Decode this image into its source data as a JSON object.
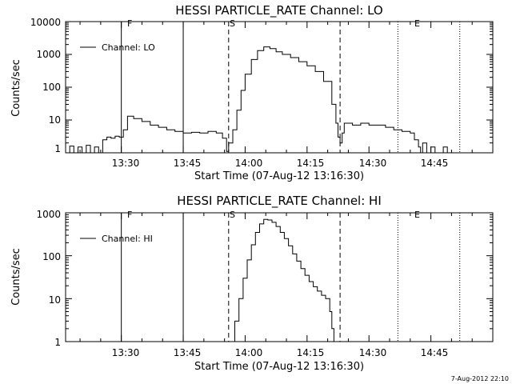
{
  "footer": {
    "timestamp": "7-Aug-2012 22:10"
  },
  "chart_data": [
    {
      "type": "line",
      "title": "HESSI PARTICLE_RATE Channel: LO",
      "xlabel": "Start Time (07-Aug-12 13:16:30)",
      "ylabel": "Counts/sec",
      "yscale": "log",
      "xlim": [
        "13:16:30",
        "15:00:00"
      ],
      "ylim": [
        1,
        10000
      ],
      "x_tick_labels": [
        "13:30",
        "13:45",
        "14:00",
        "14:15",
        "14:30",
        "14:45"
      ],
      "y_tick_labels": [
        "1",
        "10",
        "100",
        "1000",
        "10000"
      ],
      "legend": {
        "position": "top-left",
        "entries": [
          "Channel: LO"
        ]
      },
      "event_markers": [
        {
          "label": "F",
          "time": "13:30:00",
          "style": "solid"
        },
        {
          "label": "",
          "time": "13:45:00",
          "style": "solid"
        },
        {
          "label": "S",
          "time": "13:56:00",
          "style": "dashed"
        },
        {
          "label": "",
          "time": "14:23:00",
          "style": "dashed"
        },
        {
          "label": "E",
          "time": "14:37:00",
          "style": "dotted"
        },
        {
          "label": "",
          "time": "14:52:00",
          "style": "dotted"
        }
      ],
      "series": [
        {
          "name": "Channel: LO",
          "x": [
            "13:16:30",
            "13:17:30",
            "13:18:30",
            "13:19:30",
            "13:20:30",
            "13:21:30",
            "13:22:30",
            "13:23:30",
            "13:24:30",
            "13:25:30",
            "13:26:30",
            "13:27:30",
            "13:28:30",
            "13:29:30",
            "13:30:30",
            "13:31:30",
            "13:33:00",
            "13:35:00",
            "13:37:00",
            "13:39:00",
            "13:41:00",
            "13:43:00",
            "13:45:00",
            "13:47:00",
            "13:49:00",
            "13:51:00",
            "13:53:00",
            "13:54:30",
            "13:55:30",
            "13:56:00",
            "13:57:00",
            "13:58:00",
            "13:59:00",
            "14:00:00",
            "14:01:30",
            "14:03:00",
            "14:04:30",
            "14:06:00",
            "14:07:30",
            "14:09:00",
            "14:11:00",
            "14:13:00",
            "14:15:00",
            "14:17:00",
            "14:19:00",
            "14:21:00",
            "14:22:00",
            "14:22:30",
            "14:23:00",
            "14:23:30",
            "14:24:00",
            "14:26:00",
            "14:28:00",
            "14:30:00",
            "14:32:00",
            "14:34:00",
            "14:36:00",
            "14:38:00",
            "14:40:00",
            "14:41:00",
            "14:42:00",
            "14:42:30",
            "14:43:00",
            "14:44:00",
            "14:45:00",
            "14:46:00",
            "14:47:00",
            "14:48:00",
            "14:49:00",
            "14:50:00",
            "14:52:00",
            "14:54:00",
            "14:56:00",
            "14:58:00",
            "15:00:00"
          ],
          "y": [
            1,
            1.6,
            1,
            1.5,
            1,
            1.7,
            1,
            1.5,
            1,
            2.5,
            3,
            2.8,
            3.2,
            3,
            5,
            13,
            11,
            9,
            7,
            6,
            5,
            4.5,
            4,
            4.2,
            4,
            4.5,
            4,
            2.8,
            1.1,
            2,
            5,
            20,
            80,
            250,
            700,
            1300,
            1700,
            1500,
            1200,
            1000,
            800,
            600,
            450,
            300,
            150,
            30,
            8,
            3,
            2,
            4,
            8,
            7,
            8,
            7,
            7,
            6,
            5,
            4.5,
            4,
            2.5,
            1.5,
            1,
            2,
            1,
            1.5,
            1,
            1,
            1.5,
            1,
            1,
            1,
            1,
            1,
            1,
            1
          ]
        }
      ]
    },
    {
      "type": "line",
      "title": "HESSI PARTICLE_RATE Channel: HI",
      "xlabel": "Start Time (07-Aug-12 13:16:30)",
      "ylabel": "Counts/sec",
      "yscale": "log",
      "xlim": [
        "13:16:30",
        "15:00:00"
      ],
      "ylim": [
        1,
        1000
      ],
      "x_tick_labels": [
        "13:30",
        "13:45",
        "14:00",
        "14:15",
        "14:30",
        "14:45"
      ],
      "y_tick_labels": [
        "1",
        "10",
        "100",
        "1000"
      ],
      "legend": {
        "position": "top-left",
        "entries": [
          "Channel: HI"
        ]
      },
      "event_markers": [
        {
          "label": "F",
          "time": "13:30:00",
          "style": "solid"
        },
        {
          "label": "",
          "time": "13:45:00",
          "style": "solid"
        },
        {
          "label": "S",
          "time": "13:56:00",
          "style": "dashed"
        },
        {
          "label": "",
          "time": "14:23:00",
          "style": "dashed"
        },
        {
          "label": "E",
          "time": "14:37:00",
          "style": "dotted"
        },
        {
          "label": "",
          "time": "14:52:00",
          "style": "dotted"
        }
      ],
      "series": [
        {
          "name": "Channel: HI",
          "x": [
            "13:56:30",
            "13:57:30",
            "13:58:30",
            "13:59:30",
            "14:00:30",
            "14:01:30",
            "14:02:30",
            "14:03:30",
            "14:04:30",
            "14:05:30",
            "14:06:30",
            "14:07:30",
            "14:08:30",
            "14:09:30",
            "14:10:30",
            "14:11:30",
            "14:12:30",
            "14:13:30",
            "14:14:30",
            "14:15:30",
            "14:16:30",
            "14:17:30",
            "14:18:30",
            "14:19:30",
            "14:20:30",
            "14:21:00",
            "14:21:30"
          ],
          "y": [
            1,
            3,
            10,
            30,
            80,
            180,
            350,
            550,
            700,
            680,
            600,
            480,
            350,
            250,
            170,
            110,
            75,
            50,
            35,
            25,
            19,
            15,
            12,
            10,
            5,
            2,
            1
          ]
        }
      ]
    }
  ]
}
